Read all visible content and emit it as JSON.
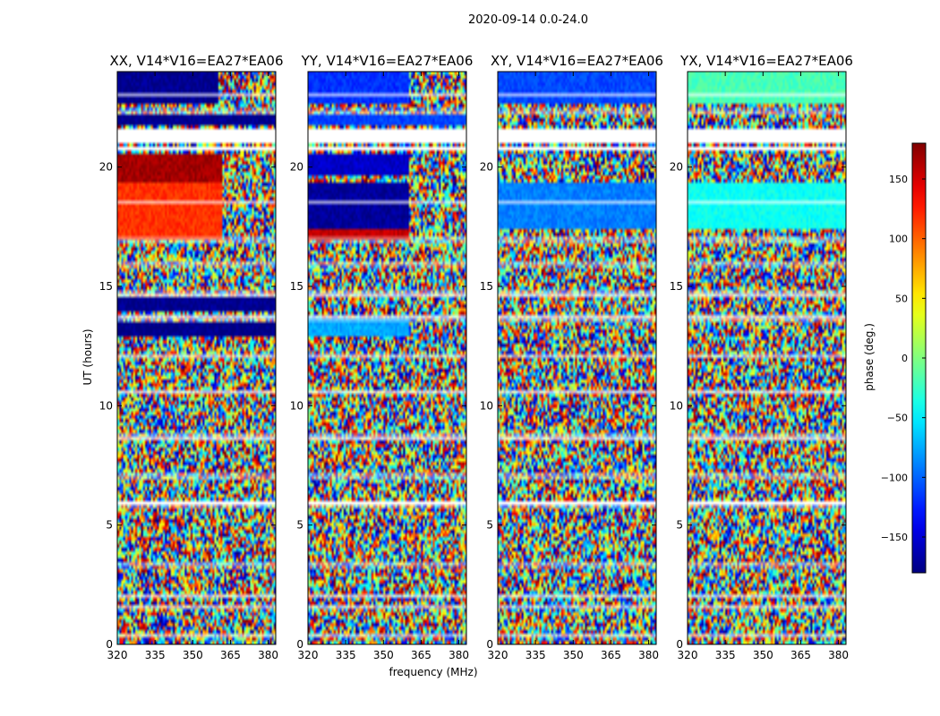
{
  "chart_data": {
    "type": "heatmap",
    "suptitle": "2020-09-14 0.0-24.0",
    "xlabel": "frequency (MHz)",
    "ylabel": "UT (hours)",
    "xlim": [
      320,
      383
    ],
    "ylim": [
      0,
      24
    ],
    "xticks": [
      "320",
      "335",
      "350",
      "365",
      "380"
    ],
    "yticks": [
      "0",
      "5",
      "10",
      "15",
      "20"
    ],
    "colorbar": {
      "label": "phase (deg.)",
      "range": [
        -180,
        180
      ],
      "ticks": [
        "150",
        "100",
        "50",
        "0",
        "−50",
        "−100",
        "−150"
      ],
      "colormap": "jet"
    },
    "panels": [
      {
        "title": "XX, V14*V16=EA27*EA06",
        "coherent_blocks": [
          {
            "ut": [
              22.6,
              24.0
            ],
            "freq": [
              320,
              360
            ],
            "phase": -175
          },
          {
            "ut": [
              21.8,
              22.2
            ],
            "freq": [
              320,
              383
            ],
            "phase": -175
          },
          {
            "ut": [
              19.4,
              20.5
            ],
            "freq": [
              320,
              362
            ],
            "phase": 168
          },
          {
            "ut": [
              17.0,
              19.3
            ],
            "freq": [
              320,
              362
            ],
            "phase": 118
          },
          {
            "ut": [
              14.0,
              14.6
            ],
            "freq": [
              320,
              383
            ],
            "phase": -175
          },
          {
            "ut": [
              12.9,
              13.5
            ],
            "freq": [
              320,
              383
            ],
            "phase": -178
          }
        ]
      },
      {
        "title": "YY, V14*V16=EA27*EA06",
        "coherent_blocks": [
          {
            "ut": [
              22.6,
              24.0
            ],
            "freq": [
              320,
              360
            ],
            "phase": -118
          },
          {
            "ut": [
              21.8,
              22.2
            ],
            "freq": [
              320,
              383
            ],
            "phase": -112
          },
          {
            "ut": [
              19.6,
              20.5
            ],
            "freq": [
              320,
              360
            ],
            "phase": -155
          },
          {
            "ut": [
              17.4,
              19.3
            ],
            "freq": [
              320,
              360
            ],
            "phase": -170
          },
          {
            "ut": [
              17.0,
              17.4
            ],
            "freq": [
              320,
              360
            ],
            "phase": 155
          },
          {
            "ut": [
              12.9,
              13.6
            ],
            "freq": [
              320,
              360
            ],
            "phase": -75
          }
        ]
      },
      {
        "title": "XY, V14*V16=EA27*EA06",
        "coherent_blocks": [
          {
            "ut": [
              22.6,
              24.0
            ],
            "freq": [
              320,
              383
            ],
            "phase": -110
          },
          {
            "ut": [
              17.4,
              19.3
            ],
            "freq": [
              320,
              383
            ],
            "phase": -90
          }
        ]
      },
      {
        "title": "YX, V14*V16=EA27*EA06",
        "coherent_blocks": [
          {
            "ut": [
              22.6,
              24.0
            ],
            "freq": [
              320,
              383
            ],
            "phase": -20
          },
          {
            "ut": [
              17.4,
              19.3
            ],
            "freq": [
              320,
              383
            ],
            "phase": -40
          }
        ]
      }
    ],
    "flagged_ut_ranges": [
      [
        21.0,
        21.6
      ],
      [
        20.7,
        20.85
      ],
      [
        16.9,
        17.0
      ],
      [
        14.6,
        14.75
      ],
      [
        13.6,
        13.75
      ],
      [
        10.55,
        10.65
      ],
      [
        8.6,
        8.75
      ],
      [
        7.0,
        7.1
      ],
      [
        5.8,
        6.0
      ],
      [
        2.0,
        2.08
      ],
      [
        1.5,
        1.58
      ],
      [
        0.3,
        0.38
      ],
      [
        3.3,
        3.36
      ],
      [
        12.1,
        12.16
      ],
      [
        15.9,
        15.96
      ],
      [
        18.5,
        18.56
      ],
      [
        22.3,
        22.38
      ],
      [
        23.0,
        23.06
      ]
    ]
  }
}
